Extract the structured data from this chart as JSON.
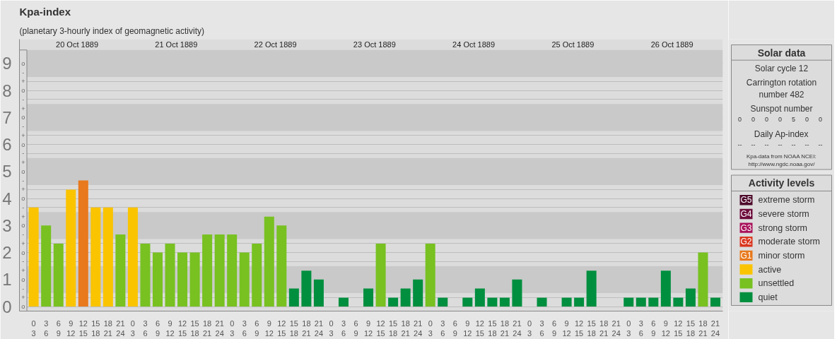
{
  "chart_data": {
    "type": "bar",
    "title": "Kpa-index",
    "subtitle": "(planetary 3-hourly index of geomagnetic activity)",
    "categories": [
      "0\n3",
      "3\n6",
      "6\n9",
      "9\n12",
      "12\n15",
      "15\n18",
      "18\n21",
      "21\n24",
      "0\n3",
      "3\n6",
      "6\n9",
      "9\n12",
      "12\n15",
      "15\n18",
      "18\n21",
      "21\n24",
      "0\n3",
      "3\n6",
      "6\n9",
      "9\n12",
      "12\n15",
      "15\n18",
      "18\n21",
      "21\n24",
      "0\n3",
      "3\n6",
      "6\n9",
      "9\n12",
      "12\n15",
      "15\n18",
      "18\n21",
      "21\n24",
      "0\n3",
      "3\n6",
      "6\n9",
      "9\n12",
      "12\n15",
      "15\n18",
      "18\n21",
      "21\n24",
      "0\n3",
      "3\n6",
      "6\n9",
      "9\n12",
      "12\n15",
      "15\n18",
      "18\n21",
      "21\n24",
      "0\n3",
      "3\n6",
      "6\n9",
      "9\n12",
      "12\n15",
      "15\n18",
      "18\n21",
      "21\n24"
    ],
    "series": [
      {
        "name": "extreme storm",
        "color": "#4d0a2b",
        "values": [
          null,
          null,
          null,
          null,
          null,
          null,
          null,
          null,
          null,
          null,
          null,
          null,
          null,
          null,
          null,
          null,
          null,
          null,
          null,
          null,
          null,
          null,
          null,
          null,
          null,
          null,
          null,
          null,
          null,
          null,
          null,
          null,
          null,
          null,
          null,
          null,
          null,
          null,
          null,
          null,
          null,
          null,
          null,
          null,
          null,
          null,
          null,
          null,
          null,
          null,
          null,
          null,
          null,
          null,
          null,
          null
        ]
      },
      {
        "name": "severe storm",
        "color": "#6e0c3c",
        "values": [
          null,
          null,
          null,
          null,
          null,
          null,
          null,
          null,
          null,
          null,
          null,
          null,
          null,
          null,
          null,
          null,
          null,
          null,
          null,
          null,
          null,
          null,
          null,
          null,
          null,
          null,
          null,
          null,
          null,
          null,
          null,
          null,
          null,
          null,
          null,
          null,
          null,
          null,
          null,
          null,
          null,
          null,
          null,
          null,
          null,
          null,
          null,
          null,
          null,
          null,
          null,
          null,
          null,
          null,
          null,
          null
        ]
      },
      {
        "name": "strong storm",
        "color": "#a8115a",
        "values": [
          null,
          null,
          null,
          null,
          null,
          null,
          null,
          null,
          null,
          null,
          null,
          null,
          null,
          null,
          null,
          null,
          null,
          null,
          null,
          null,
          null,
          null,
          null,
          null,
          null,
          null,
          null,
          null,
          null,
          null,
          null,
          null,
          null,
          null,
          null,
          null,
          null,
          null,
          null,
          null,
          null,
          null,
          null,
          null,
          null,
          null,
          null,
          null,
          null,
          null,
          null,
          null,
          null,
          null,
          null,
          null
        ]
      },
      {
        "name": "moderate storm",
        "color": "#d9361e",
        "values": [
          null,
          null,
          null,
          null,
          null,
          null,
          null,
          null,
          null,
          null,
          null,
          null,
          null,
          null,
          null,
          null,
          null,
          null,
          null,
          null,
          null,
          null,
          null,
          null,
          null,
          null,
          null,
          null,
          null,
          null,
          null,
          null,
          null,
          null,
          null,
          null,
          null,
          null,
          null,
          null,
          null,
          null,
          null,
          null,
          null,
          null,
          null,
          null,
          null,
          null,
          null,
          null,
          null,
          null,
          null,
          null
        ]
      },
      {
        "name": "minor storm",
        "color": "#e8791c",
        "values": [
          null,
          null,
          null,
          null,
          4.67,
          null,
          null,
          null,
          null,
          null,
          null,
          null,
          null,
          null,
          null,
          null,
          null,
          null,
          null,
          null,
          null,
          null,
          null,
          null,
          null,
          null,
          null,
          null,
          null,
          null,
          null,
          null,
          null,
          null,
          null,
          null,
          null,
          null,
          null,
          null,
          null,
          null,
          null,
          null,
          null,
          null,
          null,
          null,
          null,
          null,
          null,
          null,
          null,
          null,
          null,
          null
        ]
      },
      {
        "name": "active",
        "color": "#fac400",
        "values": [
          3.67,
          null,
          null,
          4.33,
          null,
          3.67,
          3.67,
          null,
          3.67,
          null,
          null,
          null,
          null,
          null,
          null,
          null,
          null,
          null,
          null,
          null,
          null,
          null,
          null,
          null,
          null,
          null,
          null,
          null,
          null,
          null,
          null,
          null,
          null,
          null,
          null,
          null,
          null,
          null,
          null,
          null,
          null,
          null,
          null,
          null,
          null,
          null,
          null,
          null,
          null,
          null,
          null,
          null,
          null,
          null,
          null,
          null
        ]
      },
      {
        "name": "unsettled",
        "color": "#78c121",
        "values": [
          null,
          3,
          2.33,
          null,
          null,
          null,
          null,
          2.67,
          null,
          2.33,
          2,
          2.33,
          2,
          2,
          2.67,
          2.67,
          2.67,
          2,
          2.33,
          3.33,
          3,
          null,
          null,
          null,
          null,
          null,
          null,
          null,
          2.33,
          null,
          null,
          null,
          2.33,
          null,
          null,
          null,
          null,
          null,
          null,
          null,
          null,
          null,
          null,
          null,
          null,
          null,
          null,
          null,
          null,
          null,
          null,
          null,
          null,
          null,
          2,
          null
        ]
      },
      {
        "name": "quiet",
        "color": "#008f3f",
        "values": [
          null,
          null,
          null,
          null,
          null,
          null,
          null,
          null,
          null,
          null,
          null,
          null,
          null,
          null,
          null,
          null,
          null,
          null,
          null,
          null,
          null,
          0.67,
          1.33,
          1,
          0,
          0.33,
          0,
          0.67,
          null,
          0.33,
          0.67,
          1,
          null,
          0.33,
          0,
          0.33,
          0.67,
          0.33,
          0.33,
          1,
          0,
          0.33,
          0,
          0.33,
          0.33,
          1.33,
          0,
          0,
          0.33,
          0.33,
          0.33,
          1.33,
          0.33,
          0.67,
          null,
          0.33
        ]
      }
    ],
    "ylim": [
      -0.17,
      9.9
    ],
    "yticks": [
      0,
      1,
      2,
      3,
      4,
      5,
      6,
      7,
      8,
      9
    ],
    "bands": [
      {
        "axis": "y",
        "from": 0.5,
        "to": 1.5,
        "color": "#c9c9c9"
      },
      {
        "axis": "y",
        "from": 2.5,
        "to": 3.5,
        "color": "#c9c9c9"
      },
      {
        "axis": "y",
        "from": 4.5,
        "to": 5.5,
        "color": "#c9c9c9"
      },
      {
        "axis": "y",
        "from": 6.5,
        "to": 7.5,
        "color": "#c9c9c9"
      },
      {
        "axis": "y",
        "from": 8.5,
        "to": 9.5,
        "color": "#c9c9c9"
      }
    ],
    "grid": "y",
    "legend": "right",
    "annotations": [
      "20 Oct 1889",
      "21 Oct 1889",
      "22 Oct 1889",
      "23 Oct 1889",
      "24 Oct 1889",
      "25 Oct 1889",
      "26 Oct 1889",
      "Solar data",
      "Solar cycle 12",
      "Carrington rotation\nnumber 482",
      "Sunspot number",
      "0",
      "0",
      "0",
      "0",
      "5",
      "0",
      "0",
      "Daily Ap-index",
      "--",
      "--",
      "--",
      "--",
      "--",
      "--",
      "--",
      "Kpa-data from NOAA NCEI:\nhttp://www.ngdc.noaa.gov/",
      "Activity levels",
      "G5",
      "G4",
      "G3",
      "G2",
      "G1",
      "o",
      "+",
      "-",
      "o",
      "+",
      "-",
      "o",
      "+",
      "-",
      "o",
      "+",
      "-",
      "o",
      "+",
      "-",
      "o",
      "+",
      "-",
      "o",
      "+",
      "-",
      "o",
      "+",
      "-",
      "o",
      "+",
      "-",
      "o"
    ]
  }
}
